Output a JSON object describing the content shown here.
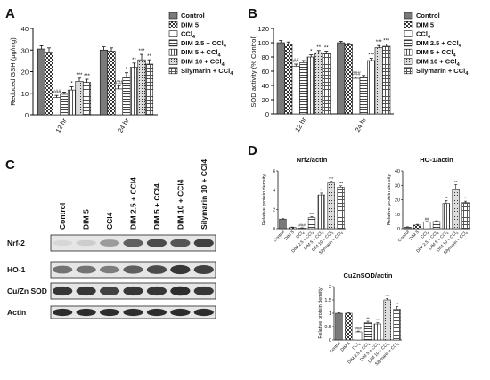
{
  "panel_letters": [
    "A",
    "B",
    "C",
    "D"
  ],
  "legend_labels": [
    "Control",
    "DIM 5",
    "CCl4",
    "DIM 2.5 + CCl4",
    "DIM 5 + CCl4",
    "DIM 10 + CCl4",
    "Silymarin + CCl4"
  ],
  "western_blot": {
    "lanes": [
      "Control",
      "DIM 5",
      "CCl4",
      "DIM 2.5 + CCl4",
      "DIM 5 + CCl4",
      "DIM 10 + CCl4",
      "Silymarin 10 + CCl4"
    ],
    "rows": [
      {
        "label": "Nrf-2",
        "intensity": [
          0.05,
          0.1,
          0.35,
          0.65,
          0.75,
          0.7,
          0.8
        ]
      },
      {
        "label": "HO-1",
        "intensity": [
          0.55,
          0.55,
          0.5,
          0.65,
          0.75,
          0.85,
          0.8
        ]
      },
      {
        "label": "Cu/Zn SOD",
        "intensity": [
          0.85,
          0.85,
          0.8,
          0.85,
          0.85,
          0.9,
          0.85
        ]
      },
      {
        "label": "Actin",
        "intensity": [
          0.9,
          0.9,
          0.9,
          0.9,
          0.9,
          0.9,
          0.9
        ]
      }
    ]
  },
  "chart_data": [
    {
      "panel": "A",
      "type": "bar",
      "ylabel": "Reduced GSH (µg/mg)",
      "ylim": [
        0,
        40
      ],
      "yticks": [
        0,
        10,
        20,
        30,
        40
      ],
      "categories": [
        "12 hr",
        "24 hr"
      ],
      "legend_position": "right",
      "series": [
        {
          "name": "Control",
          "values": [
            30.5,
            30
          ],
          "errors": [
            1.5,
            1.5
          ],
          "sig": [
            "",
            ""
          ]
        },
        {
          "name": "DIM 5",
          "values": [
            29,
            29.5
          ],
          "errors": [
            2,
            1.5
          ],
          "sig": [
            "",
            ""
          ]
        },
        {
          "name": "CCl4",
          "values": [
            8,
            12
          ],
          "errors": [
            1,
            1.5
          ],
          "sig": [
            "###",
            "###"
          ]
        },
        {
          "name": "DIM 2.5 + CCl4",
          "values": [
            9.5,
            17.5
          ],
          "errors": [
            1,
            2
          ],
          "sig": [
            "",
            "*"
          ]
        },
        {
          "name": "DIM 5 + CCl4",
          "values": [
            11.5,
            22
          ],
          "errors": [
            1.5,
            2
          ],
          "sig": [
            "*",
            "**"
          ]
        },
        {
          "name": "DIM 10 + CCl4",
          "values": [
            15.5,
            25.5
          ],
          "errors": [
            1.5,
            2.5
          ],
          "sig": [
            "***",
            "***"
          ]
        },
        {
          "name": "Silymarin + CCl4",
          "values": [
            15,
            23.5
          ],
          "errors": [
            1.5,
            2
          ],
          "sig": [
            "***",
            "**"
          ]
        }
      ]
    },
    {
      "panel": "B",
      "type": "bar",
      "ylabel": "SOD activity (% Control)",
      "ylim": [
        0,
        120
      ],
      "yticks": [
        0,
        20,
        40,
        60,
        80,
        100,
        120
      ],
      "categories": [
        "12 hr",
        "24 hr"
      ],
      "legend_position": "right",
      "series": [
        {
          "name": "Control",
          "values": [
            100,
            100
          ],
          "errors": [
            3,
            2
          ],
          "sig": [
            "",
            ""
          ]
        },
        {
          "name": "DIM 5",
          "values": [
            98,
            97
          ],
          "errors": [
            3,
            2
          ],
          "sig": [
            "",
            ""
          ]
        },
        {
          "name": "CCl4",
          "values": [
            67,
            50
          ],
          "errors": [
            3,
            2
          ],
          "sig": [
            "##",
            "###"
          ]
        },
        {
          "name": "DIM 2.5 + CCl4",
          "values": [
            72,
            52
          ],
          "errors": [
            3,
            2
          ],
          "sig": [
            "",
            ""
          ]
        },
        {
          "name": "DIM 5 + CCl4",
          "values": [
            80,
            75
          ],
          "errors": [
            3,
            3
          ],
          "sig": [
            "*",
            "***"
          ]
        },
        {
          "name": "DIM 10 + CCl4",
          "values": [
            86,
            93
          ],
          "errors": [
            3,
            3
          ],
          "sig": [
            "**",
            "***"
          ]
        },
        {
          "name": "Silymarin + CCl4",
          "values": [
            85,
            95
          ],
          "errors": [
            3,
            3
          ],
          "sig": [
            "**",
            "***"
          ]
        }
      ]
    },
    {
      "panel": "D",
      "type": "bar",
      "title": "Nrf2/actin",
      "ylabel": "Relative protein density",
      "ylim": [
        0,
        6
      ],
      "yticks": [
        0,
        2,
        4,
        6
      ],
      "categories": [
        "Control",
        "DIM 5",
        "CCl4",
        "DIM 2.5 + CCl4",
        "DIM 5 + CCl4",
        "DIM 10 + CCl4",
        "Silymarin + CCl4"
      ],
      "values": [
        1,
        0.12,
        0.05,
        1.15,
        3.5,
        4.75,
        4.3
      ],
      "errors": [
        0.05,
        0.05,
        0.05,
        0.1,
        0.2,
        0.2,
        0.15
      ],
      "sig": [
        "",
        "",
        "###",
        "***",
        "***",
        "***",
        "***"
      ]
    },
    {
      "panel": "D",
      "type": "bar",
      "title": "HO-1/actin",
      "ylabel": "Relative protein density",
      "ylim": [
        0,
        40
      ],
      "yticks": [
        0,
        10,
        20,
        30,
        40
      ],
      "categories": [
        "Control",
        "DIM 5",
        "CCl4",
        "DIM 2.5 + CCl4",
        "DIM 5 + CCl4",
        "DIM 10 + CCl4",
        "Silymarin + CCl4"
      ],
      "values": [
        1,
        2.5,
        4.5,
        5,
        17.5,
        27.5,
        18
      ],
      "errors": [
        0.3,
        0.5,
        0.5,
        0.5,
        2,
        3,
        1
      ],
      "sig": [
        "",
        "",
        "##",
        "",
        "**",
        "**",
        "**"
      ]
    },
    {
      "panel": "D",
      "type": "bar",
      "title": "CuZnSOD/actin",
      "ylabel": "Relative protein density",
      "ylim": [
        0,
        2
      ],
      "yticks": [
        0,
        0.5,
        1,
        1.5,
        2
      ],
      "categories": [
        "Control",
        "DIM 5",
        "CCl4",
        "DIM 2.5 + CCl4",
        "DIM 5 + CCl4",
        "DIM 10 + CCl4",
        "Silymarin + CCl4"
      ],
      "values": [
        1,
        1,
        0.3,
        0.65,
        0.6,
        1.5,
        1.15
      ],
      "errors": [
        0.02,
        0.02,
        0.03,
        0.05,
        0.05,
        0.05,
        0.1
      ],
      "sig": [
        "",
        "",
        "###",
        "**",
        "**",
        "***",
        "**"
      ]
    }
  ]
}
